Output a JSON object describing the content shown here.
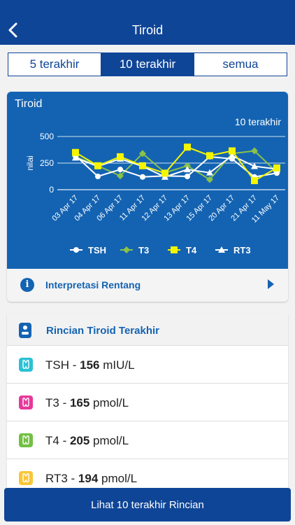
{
  "header": {
    "title": "Tiroid"
  },
  "segments": [
    {
      "label": "5 terakhir",
      "active": false
    },
    {
      "label": "10 terakhir",
      "active": true
    },
    {
      "label": "semua",
      "active": false
    }
  ],
  "chart_card": {
    "title": "Tiroid",
    "subtitle": "10 terakhir",
    "interpretation_label": "Interpretasi Rentang",
    "colors": {
      "TSH": "#ffffff",
      "T3": "#8ac24a",
      "T4": "#f5f500",
      "RT3": "#ffffff"
    }
  },
  "chart_data": {
    "type": "line",
    "title": "Tiroid",
    "subtitle": "10 terakhir",
    "ylabel": "nilai",
    "xlabel": "",
    "ylim": [
      0,
      500
    ],
    "yticks": [
      0,
      250,
      500
    ],
    "grid": true,
    "legend": "bottom",
    "categories": [
      "03 Apr 17",
      "04 Apr 17",
      "06 Apr 17",
      "11 Apr 17",
      "12 Apr 17",
      "13 Apr 17",
      "15 Apr 17",
      "20 Apr 17",
      "21 Apr 17",
      "11 May 17"
    ],
    "series": [
      {
        "name": "TSH",
        "marker": "circle",
        "values": [
          320,
          125,
          190,
          120,
          130,
          125,
          310,
          290,
          120,
          156
        ]
      },
      {
        "name": "T3",
        "marker": "diamond",
        "values": [
          310,
          225,
          130,
          340,
          160,
          225,
          95,
          340,
          365,
          165
        ]
      },
      {
        "name": "T4",
        "marker": "square",
        "values": [
          350,
          225,
          310,
          225,
          155,
          400,
          320,
          365,
          85,
          205
        ]
      },
      {
        "name": "RT3",
        "marker": "triangle",
        "values": [
          300,
          220,
          290,
          220,
          120,
          190,
          160,
          320,
          220,
          194
        ]
      }
    ]
  },
  "details": {
    "title": "Rincian Tiroid Terakhir",
    "rows": [
      {
        "name": "TSH",
        "sep": " - ",
        "value": "156",
        "unit": " mIU/L",
        "color": "#2bc1d4"
      },
      {
        "name": "T3",
        "sep": " - ",
        "value": "165",
        "unit": " pmol/L",
        "color": "#e6389a"
      },
      {
        "name": "T4",
        "sep": " - ",
        "value": "205",
        "unit": " pmol/L",
        "color": "#72c043"
      },
      {
        "name": "RT3",
        "sep": " - ",
        "value": "194",
        "unit": " pmol/L",
        "color": "#f9c638"
      }
    ]
  },
  "footer": {
    "button_label": "Lihat 10 terakhir Rincian"
  }
}
